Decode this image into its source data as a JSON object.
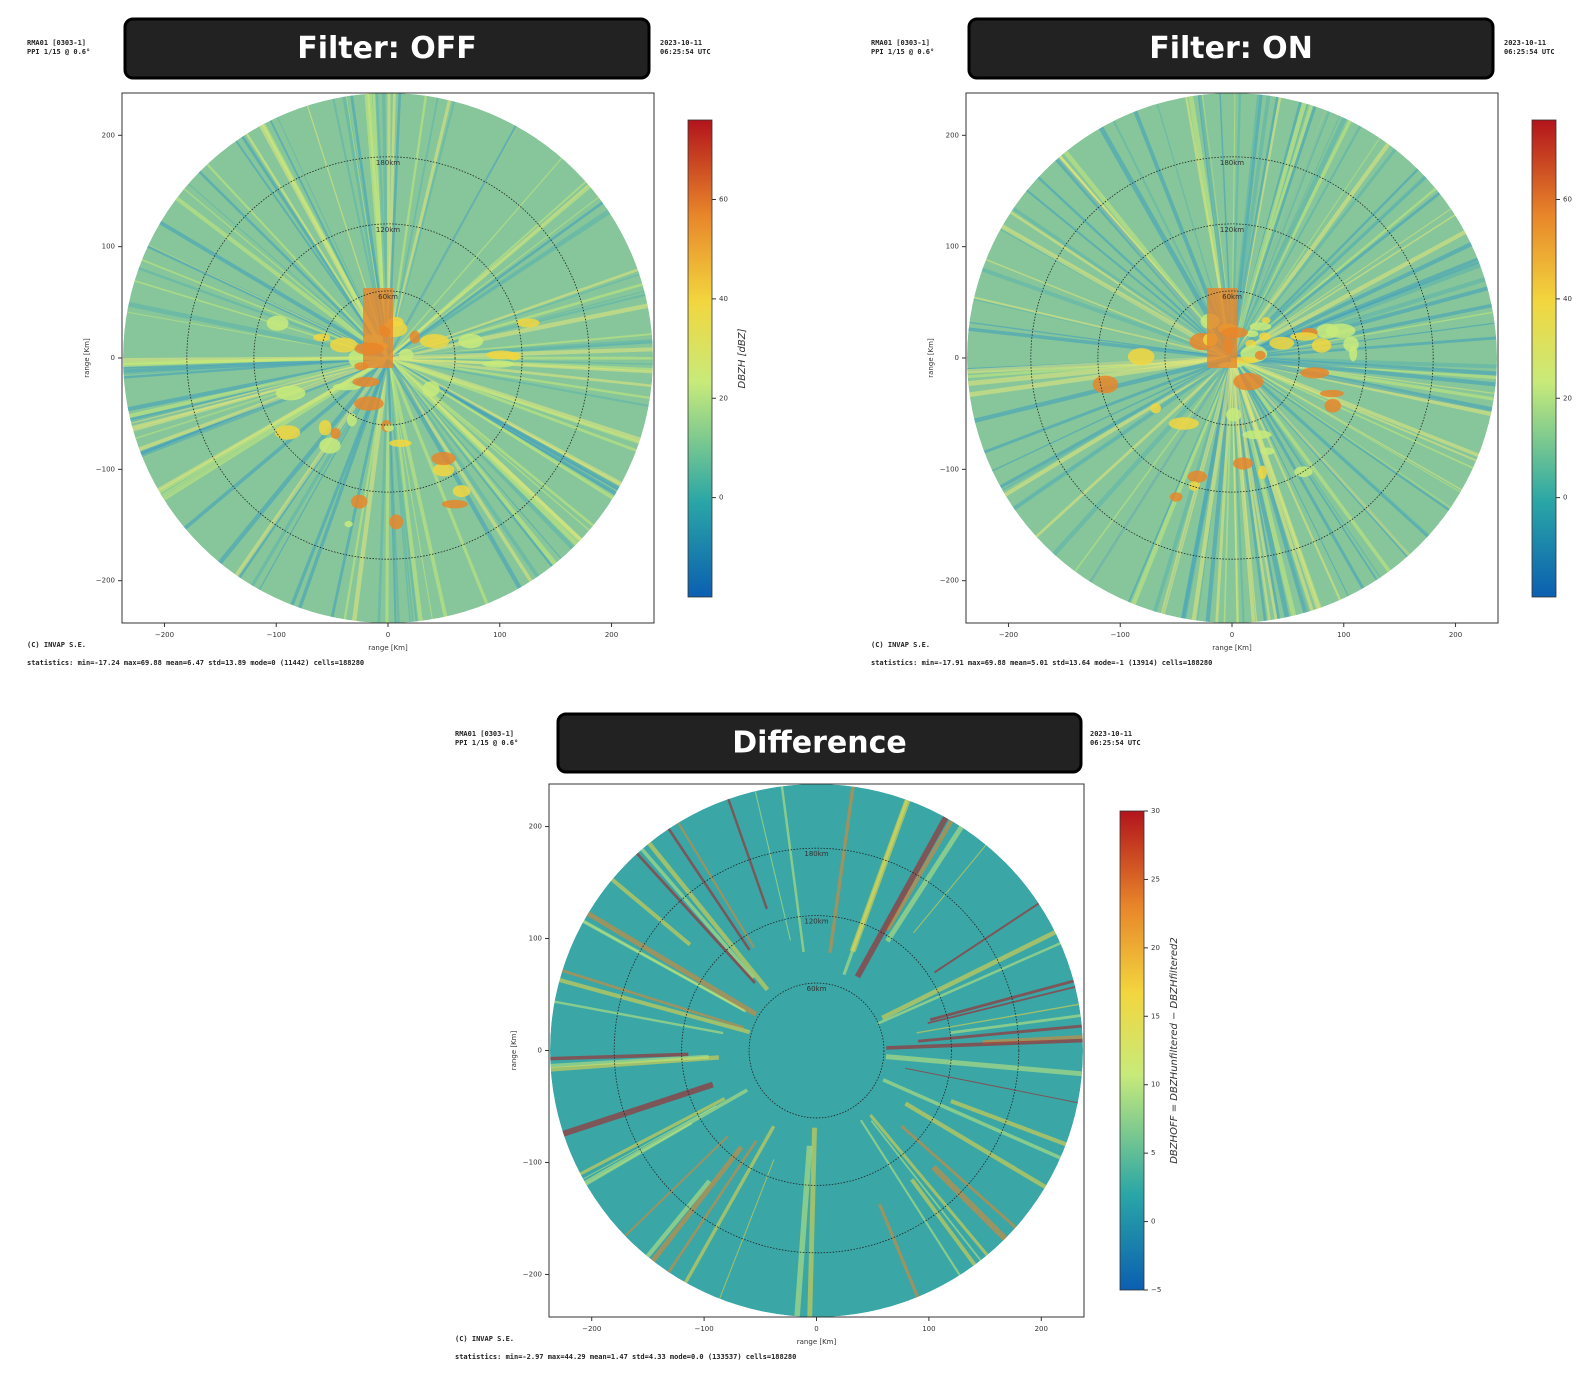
{
  "chart_data": [
    {
      "type": "ppi",
      "title": "Filter: OFF",
      "site": "RMA01 [0303-1]",
      "scan": "PPI 1/15 @ 0.6°",
      "date": "2023-10-11",
      "time": "06:25:54 UTC",
      "credit": "(C) INVAP S.E.",
      "statistics": "statistics: min=-17.24 max=69.88 mean=6.47 std=13.89 mode=0 (11442) cells=188280",
      "xlabel": "range [Km]",
      "ylabel": "range [Km]",
      "xlim": [
        -238,
        238
      ],
      "ylim": [
        -238,
        238
      ],
      "xticks": [
        {
          "value": -200,
          "label": "−200"
        },
        {
          "value": -100,
          "label": "−100"
        },
        0,
        100,
        200
      ],
      "yticks": [
        {
          "value": -200,
          "label": "−200"
        },
        {
          "value": -100,
          "label": "−100"
        },
        0,
        100,
        200
      ],
      "rings": [
        {
          "value": 60,
          "label": "60km"
        },
        {
          "value": 120,
          "label": "120km"
        },
        {
          "value": 180,
          "label": "180km"
        }
      ],
      "colorbar": {
        "label": "DBZH [dBZ]",
        "lim": [
          -20,
          76
        ],
        "ticks": [
          0,
          20,
          40,
          60
        ]
      }
    },
    {
      "type": "ppi",
      "title": "Filter: ON",
      "site": "RMA01 [0303-1]",
      "scan": "PPI 1/15 @ 0.6°",
      "date": "2023-10-11",
      "time": "06:25:54 UTC",
      "credit": "(C) INVAP S.E.",
      "statistics": "statistics: min=-17.91 max=69.88 mean=5.01 std=13.64 mode=-1 (13914) cells=188280",
      "xlabel": "range [Km]",
      "ylabel": "range [Km]",
      "xlim": [
        -238,
        238
      ],
      "ylim": [
        -238,
        238
      ],
      "xticks": [
        {
          "value": -200,
          "label": "−200"
        },
        {
          "value": -100,
          "label": "−100"
        },
        0,
        100,
        200
      ],
      "yticks": [
        {
          "value": -200,
          "label": "−200"
        },
        {
          "value": -100,
          "label": "−100"
        },
        0,
        100,
        200
      ],
      "rings": [
        {
          "value": 60,
          "label": "60km"
        },
        {
          "value": 120,
          "label": "120km"
        },
        {
          "value": 180,
          "label": "180km"
        }
      ],
      "colorbar": {
        "lim": [
          -20,
          76
        ],
        "ticks": [
          0,
          20,
          40,
          60
        ]
      }
    },
    {
      "type": "ppi",
      "title": "Difference",
      "site": "RMA01 [0303-1]",
      "scan": "PPI 1/15 @ 0.6°",
      "date": "2023-10-11",
      "time": "06:25:54 UTC",
      "credit": "(C) INVAP S.E.",
      "statistics": "statistics: min=-2.97 max=44.29 mean=1.47 std=4.33 mode=0.0 (133537) cells=188280",
      "xlabel": "range [Km]",
      "ylabel": "range [Km]",
      "xlim": [
        -238,
        238
      ],
      "ylim": [
        -238,
        238
      ],
      "xticks": [
        {
          "value": -200,
          "label": "−200"
        },
        {
          "value": -100,
          "label": "−100"
        },
        0,
        100,
        200
      ],
      "yticks": [
        {
          "value": -200,
          "label": "−200"
        },
        {
          "value": -100,
          "label": "−100"
        },
        0,
        100,
        200
      ],
      "rings": [
        {
          "value": 60,
          "label": "60km"
        },
        {
          "value": 120,
          "label": "120km"
        },
        {
          "value": 180,
          "label": "180km"
        }
      ],
      "colorbar": {
        "label": "DBZHOFF = DBZHunfiltered − DBZHfiltered2",
        "lim": [
          -5,
          30
        ],
        "ticks": [
          {
            "value": -5,
            "label": "−5"
          },
          0,
          5,
          10,
          15,
          20,
          25,
          30
        ]
      }
    }
  ]
}
